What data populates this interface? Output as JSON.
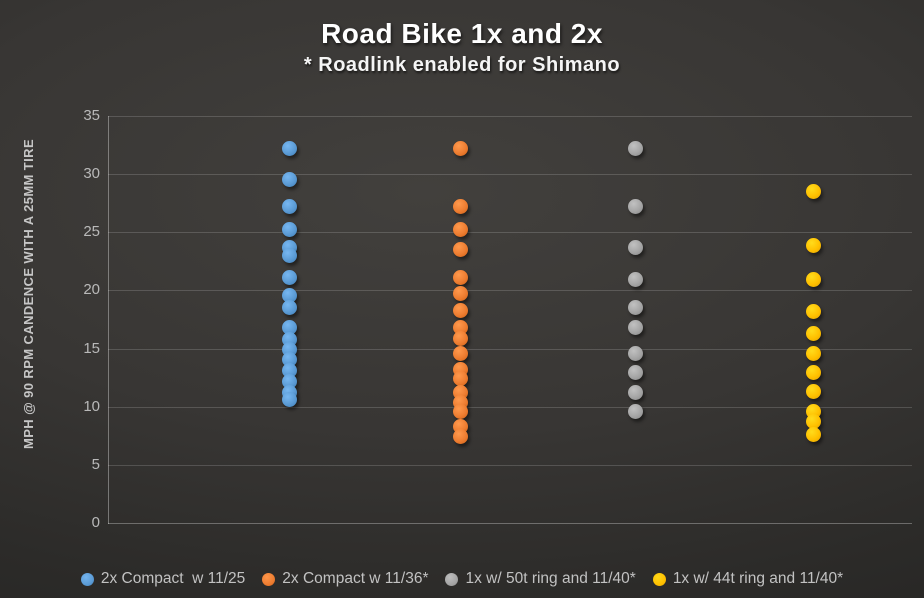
{
  "title": "Road Bike 1x and 2x",
  "subtitle": "* Roadlink enabled for Shimano",
  "chart_data": {
    "type": "scatter",
    "title": "Road Bike 1x and 2x",
    "subtitle": "* Roadlink enabled for Shimano",
    "xlabel": "",
    "ylabel": "MPH @ 90 RPM CANDENCE WITH A 25MM TIRE",
    "ylim": [
      0,
      35
    ],
    "yticks": [
      0,
      5,
      10,
      15,
      20,
      25,
      30,
      35
    ],
    "grid": "horizontal",
    "legend_position": "bottom",
    "series": [
      {
        "name": "2x Compact  w 11/25",
        "color": "#5B9BD5",
        "values": [
          32.2,
          29.5,
          27.2,
          25.2,
          23.7,
          23.0,
          21.1,
          19.6,
          18.5,
          16.8,
          15.8,
          14.9,
          14.1,
          13.1,
          12.2,
          11.2,
          10.6
        ]
      },
      {
        "name": "2x Compact w 11/36*",
        "color": "#ED7D31",
        "values": [
          32.2,
          27.2,
          25.2,
          23.5,
          21.1,
          19.7,
          18.3,
          16.8,
          15.9,
          14.6,
          13.2,
          12.4,
          11.2,
          10.4,
          9.6,
          8.3,
          7.4
        ]
      },
      {
        "name": "1x w/ 50t ring and 11/40*",
        "color": "#A5A5A5",
        "values": [
          32.2,
          27.2,
          23.7,
          20.9,
          18.5,
          16.8,
          14.6,
          12.9,
          11.2,
          9.6
        ]
      },
      {
        "name": "1x w/ 44t ring and 11/40*",
        "color": "#FFC000",
        "values": [
          28.5,
          23.9,
          20.9,
          18.2,
          16.3,
          14.6,
          12.9,
          11.3,
          9.6,
          8.7,
          7.6
        ]
      }
    ]
  },
  "colors": {
    "background_center": "#42403d",
    "background_edge": "#232221",
    "title_text": "#ffffff",
    "axis_text": "#b9b9b9",
    "gridline": "rgba(255,255,255,0.16)"
  }
}
